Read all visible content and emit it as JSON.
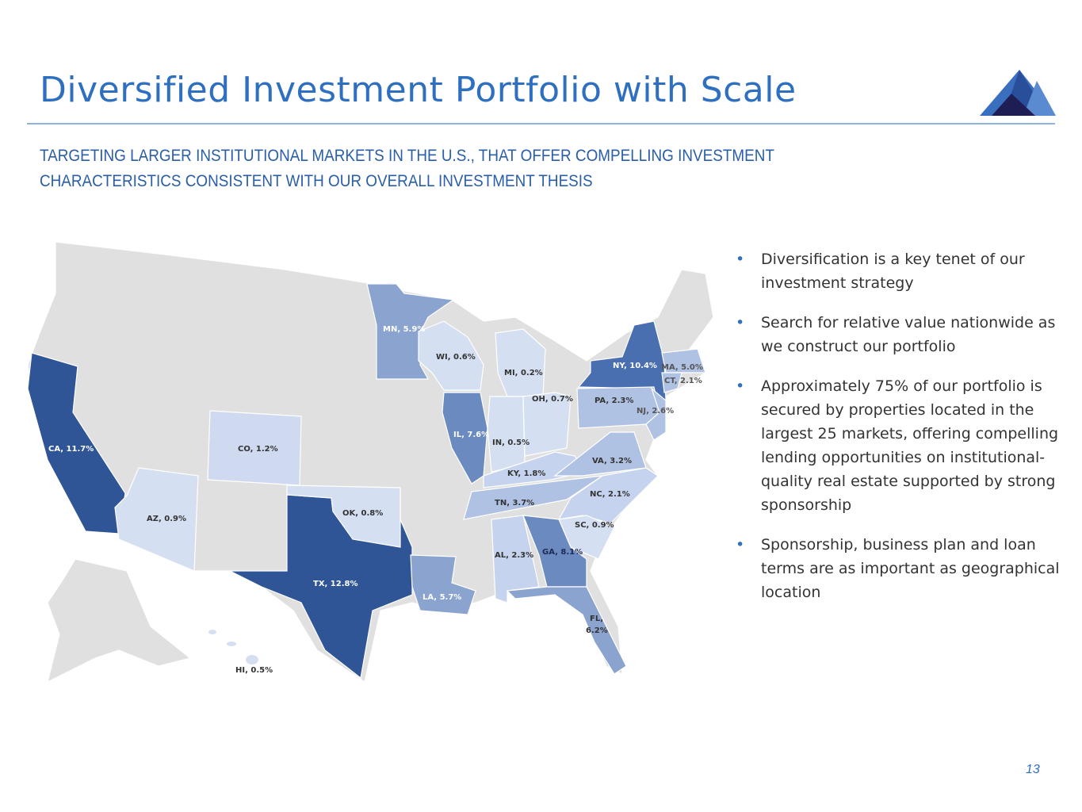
{
  "title": "Diversified Investment Portfolio with Scale",
  "subtitle_lines": [
    "TARGETING LARGER INSTITUTIONAL MARKETS IN THE U.S., THAT OFFER COMPELLING INVESTMENT",
    "CHARACTERISTICS CONSISTENT WITH OUR OVERALL INVESTMENT THESIS"
  ],
  "colors": {
    "accent": "#2e6fc0",
    "land": "#e0e0e0",
    "tier1": "#2f5597",
    "tier2": "#4a6fb0",
    "tier3": "#6a8ac0",
    "tier4": "#8aa3cf",
    "tier5": "#b0c2e3",
    "tier6": "#d5dff2"
  },
  "map_labels": {
    "CA": "CA, 11.7%",
    "TX": "TX, 12.8%",
    "NY": "NY, 10.4%",
    "GA": "GA, 8.1%",
    "IL": "IL, 7.6%",
    "FL": "FL,",
    "FL2": "6.2%",
    "MN": "MN, 5.9%",
    "LA": "LA, 5.7%",
    "MA": "MA, 5.0%",
    "TN": "TN, 3.7%",
    "VA": "VA, 3.2%",
    "NJ": "NJ, 2.6%",
    "PA": "PA, 2.3%",
    "AL": "AL, 2.3%",
    "CT": "CT, 2.1%",
    "NC": "NC, 2.1%",
    "KY": "KY, 1.8%",
    "CO": "CO, 1.2%",
    "AZ": "AZ, 0.9%",
    "SC": "SC, 0.9%",
    "OK": "OK, 0.8%",
    "OH": "OH, 0.7%",
    "WI": "WI, 0.6%",
    "IN": "IN, 0.5%",
    "HI": "HI, 0.5%",
    "MI": "MI, 0.2%"
  },
  "bullets": [
    "Diversification is a key tenet of our investment strategy",
    "Search for relative value nationwide as we construct our portfolio",
    "Approximately 75% of our portfolio is secured by properties located in the largest 25 markets, offering compelling lending opportunities on institutional-quality real estate supported by strong sponsorship",
    "Sponsorship, business plan and loan terms are as important as geographical location"
  ],
  "page_number": "13"
}
